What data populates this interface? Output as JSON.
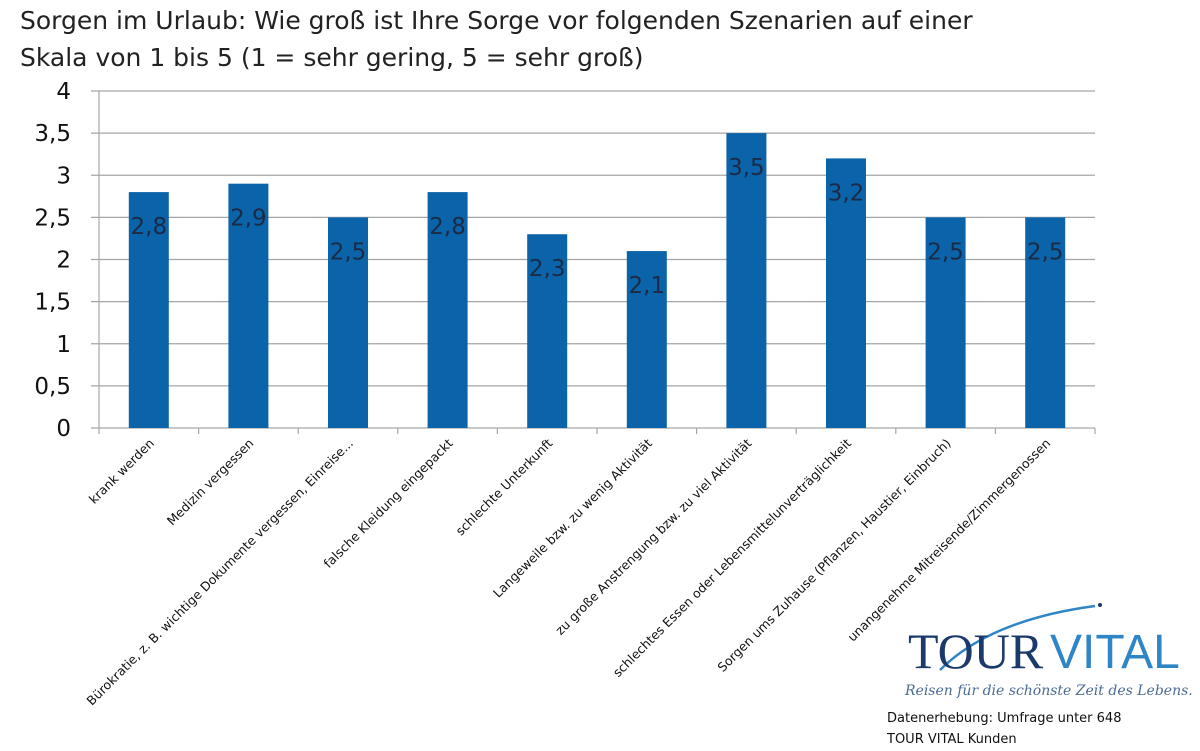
{
  "chart_data": {
    "type": "bar",
    "title_lines": [
      "Sorgen im Urlaub: Wie groß ist Ihre Sorge vor folgenden Szenarien auf einer",
      "Skala von 1 bis 5 (1 = sehr gering, 5 = sehr groß)"
    ],
    "categories": [
      "krank werden",
      "Medizin vergessen",
      "Bürokratie, z. B. wichtige Dokumente vergessen, Einreise...",
      "falsche Kleidung eingepackt",
      "schlechte Unterkunft",
      "Langeweile bzw. zu wenig Aktivität",
      "zu große Anstrengung bzw. zu viel Aktivität",
      "schlechtes Essen oder Lebensmittelunverträglichkeit",
      "Sorgen ums Zuhause (Pflanzen, Haustier, Einbruch)",
      "unangenehme Mitreisende/Zimmergenossen"
    ],
    "values": [
      2.8,
      2.9,
      2.5,
      2.8,
      2.3,
      2.1,
      3.5,
      3.2,
      2.5,
      2.5
    ],
    "data_labels": [
      "2,8",
      "2,9",
      "2,5",
      "2,8",
      "2,3",
      "2,1",
      "3,5",
      "3,2",
      "2,5",
      "2,5"
    ],
    "yticks": [
      0,
      0.5,
      1,
      1.5,
      2,
      2.5,
      3,
      3.5,
      4
    ],
    "ytick_labels": [
      "0",
      "0,5",
      "1",
      "1,5",
      "2",
      "2,5",
      "3",
      "3,5",
      "4"
    ],
    "ylim": [
      0,
      4
    ],
    "grid": true,
    "xlabel": "",
    "ylabel": "",
    "bar_color": "#0b63a9",
    "gridline_color": "#a6a6a6"
  },
  "logo": {
    "text_dark": "TOUR",
    "text_light": "VITAL",
    "tagline": "Reisen für die schönste Zeit des Lebens.",
    "dark_color": "#1b3a6b",
    "light_color": "#2f86c6"
  },
  "source": {
    "line1": "Datenerhebung: Umfrage unter 648",
    "line2": "TOUR VITAL Kunden"
  }
}
